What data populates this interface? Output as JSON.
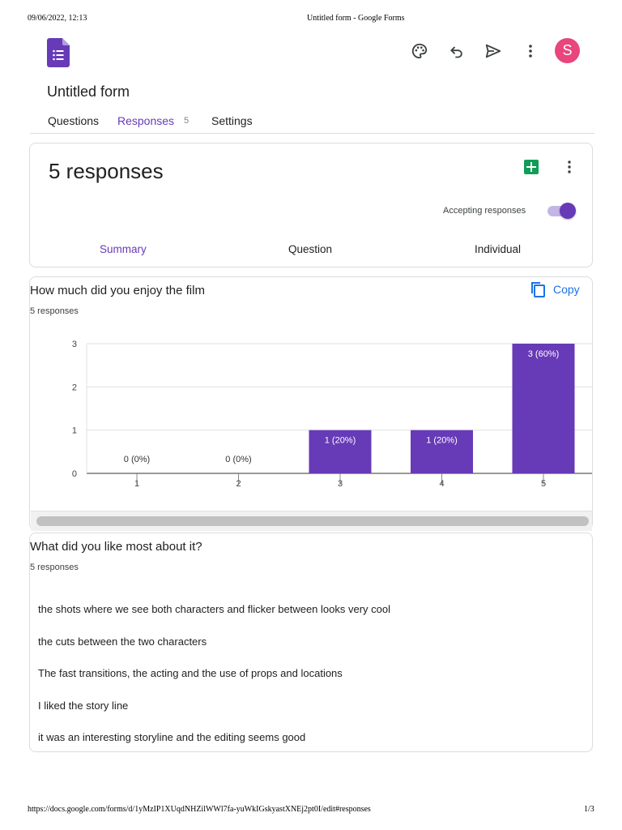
{
  "print": {
    "datetime": "09/06/2022, 12:13",
    "doc_title": "Untitled form - Google Forms",
    "url": "https://docs.google.com/forms/d/1yMzIP1XUqdNHZilWWl7fa-yuWkIGskyastXNEj2pt0I/edit#responses",
    "page": "1/3"
  },
  "header": {
    "form_title": "Untitled form",
    "avatar_letter": "S",
    "icons": [
      "palette-icon",
      "undo-icon",
      "send-icon",
      "more-vert-icon"
    ]
  },
  "nav": {
    "questions": "Questions",
    "responses": "Responses",
    "responses_count": "5",
    "settings": "Settings"
  },
  "responses_card": {
    "count_label": "5 responses",
    "accepting_label": "Accepting responses",
    "accepting_on": true,
    "tabs": {
      "summary": "Summary",
      "question": "Question",
      "individual": "Individual"
    }
  },
  "q1": {
    "title": "How much did you enjoy the film",
    "subtitle": "5 responses",
    "copy_label": "Copy"
  },
  "chart_data": {
    "type": "bar",
    "categories": [
      "1",
      "2",
      "3",
      "4",
      "5"
    ],
    "values": [
      0,
      0,
      1,
      1,
      3
    ],
    "data_labels": [
      "0 (0%)",
      "0 (0%)",
      "1 (20%)",
      "1 (20%)",
      "3 (60%)"
    ],
    "y_ticks": [
      "0",
      "1",
      "2",
      "3"
    ],
    "ylim": [
      0,
      3
    ],
    "grid": true,
    "bar_color": "#673ab7"
  },
  "q2": {
    "title": "What did you like most about it?",
    "subtitle": "5 responses",
    "answers": [
      "the shots where we see both characters and flicker between looks very cool",
      "the cuts between the two characters",
      "The fast transitions, the acting and the use of props and locations",
      "I liked the story line",
      "it was an interesting storyline and the editing seems good"
    ]
  }
}
